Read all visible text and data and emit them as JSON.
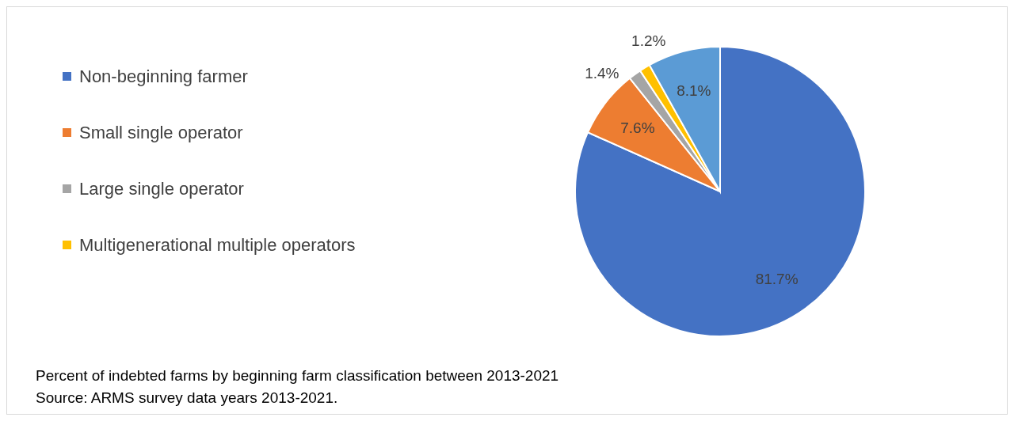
{
  "chart_data": {
    "type": "pie",
    "categories": [
      "Non-beginning farmer",
      "Small single operator",
      "Large single operator",
      "Multigenerational multiple operators",
      null
    ],
    "values": [
      81.7,
      7.6,
      1.4,
      1.2,
      8.1
    ],
    "colors": [
      "#4472c4",
      "#ed7d31",
      "#a5a5a5",
      "#ffc000",
      "#5b9bd5"
    ],
    "value_labels": [
      "81.7%",
      "7.6%",
      "1.4%",
      "1.2%",
      "8.1%"
    ],
    "legend": "top left",
    "annotations": [
      "Percent of indebted farms by beginning farm classification between 2013-2021",
      "Source: ARMS survey data years 2013-2021."
    ]
  }
}
